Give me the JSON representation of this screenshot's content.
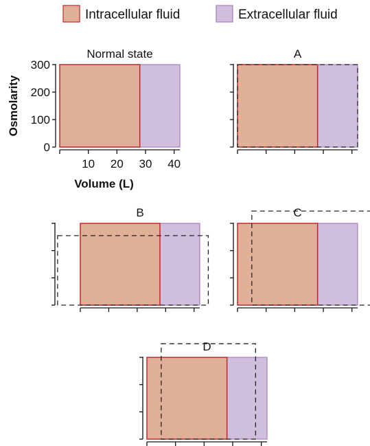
{
  "legend": {
    "placement": "top",
    "items": [
      {
        "label": "Intracellular fluid",
        "fill": "#dfb097",
        "stroke": "#c0282d"
      },
      {
        "label": "Extracellular fluid",
        "fill": "#d0bfdc",
        "stroke": "#a77cc0"
      }
    ]
  },
  "colors": {
    "icf_fill": "#dfb097",
    "icf_stroke": "#c0282d",
    "ecf_fill": "#d0bfdc",
    "ecf_stroke": "#a77cc0",
    "dashed": "#222222"
  },
  "chart_data": {
    "type": "area",
    "xlabel": "Volume (L)",
    "ylabel": "Osmolarity",
    "xlim": [
      0,
      42
    ],
    "ylim": [
      0,
      300
    ],
    "xticks": [
      10,
      20,
      30,
      40
    ],
    "yticks": [
      0,
      100,
      200,
      300
    ],
    "grid": false,
    "panels": [
      {
        "title": "Normal state",
        "icf_volume": [
          0,
          28
        ],
        "ecf_volume": [
          28,
          42
        ],
        "osmolarity": 300,
        "show_axis_labels": true,
        "dashed": null
      },
      {
        "title": "A",
        "icf_volume": [
          0,
          28
        ],
        "ecf_volume": [
          28,
          42
        ],
        "osmolarity": 300,
        "show_axis_labels": false,
        "dashed": {
          "x": [
            0,
            42
          ],
          "y": [
            0,
            300
          ]
        }
      },
      {
        "title": "B",
        "icf_volume": [
          0,
          28
        ],
        "ecf_volume": [
          28,
          42
        ],
        "osmolarity": 300,
        "show_axis_labels": false,
        "dashed": {
          "x": [
            -8,
            45
          ],
          "y": [
            0,
            255
          ]
        }
      },
      {
        "title": "C",
        "icf_volume": [
          0,
          28
        ],
        "ecf_volume": [
          28,
          42
        ],
        "osmolarity": 300,
        "show_axis_labels": false,
        "dashed": {
          "x": [
            5,
            50
          ],
          "y": [
            0,
            345
          ]
        }
      },
      {
        "title": "D",
        "icf_volume": [
          0,
          28
        ],
        "ecf_volume": [
          28,
          42
        ],
        "osmolarity": 300,
        "show_axis_labels": false,
        "dashed": {
          "x": [
            5,
            38
          ],
          "y": [
            0,
            350
          ]
        }
      }
    ]
  }
}
